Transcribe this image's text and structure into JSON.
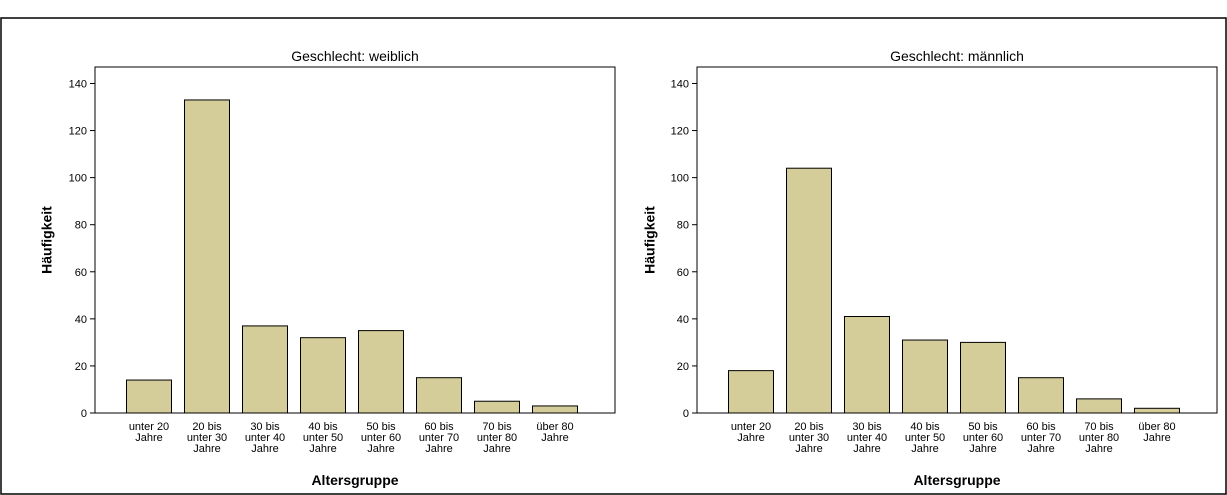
{
  "chart_data": [
    {
      "type": "bar",
      "title": "Geschlecht: weiblich",
      "xlabel": "Altersgruppe",
      "ylabel": "Häufigkeit",
      "ylim": [
        0,
        147
      ],
      "yticks": [
        0,
        20,
        40,
        60,
        80,
        100,
        120,
        140
      ],
      "grid": false,
      "bar_color": "#d4cd99",
      "categories": [
        [
          "unter 20",
          "Jahre"
        ],
        [
          "20 bis",
          "unter 30",
          "Jahre"
        ],
        [
          "30 bis",
          "unter 40",
          "Jahre"
        ],
        [
          "40 bis",
          "unter 50",
          "Jahre"
        ],
        [
          "50 bis",
          "unter 60",
          "Jahre"
        ],
        [
          "60 bis",
          "unter 70",
          "Jahre"
        ],
        [
          "70 bis",
          "unter 80",
          "Jahre"
        ],
        [
          "über 80",
          "Jahre"
        ]
      ],
      "values": [
        14,
        133,
        37,
        32,
        35,
        15,
        5,
        3
      ]
    },
    {
      "type": "bar",
      "title": "Geschlecht: männlich",
      "xlabel": "Altersgruppe",
      "ylabel": "Häufigkeit",
      "ylim": [
        0,
        147
      ],
      "yticks": [
        0,
        20,
        40,
        60,
        80,
        100,
        120,
        140
      ],
      "grid": false,
      "bar_color": "#d4cd99",
      "categories": [
        [
          "unter 20",
          "Jahre"
        ],
        [
          "20 bis",
          "unter 30",
          "Jahre"
        ],
        [
          "30 bis",
          "unter 40",
          "Jahre"
        ],
        [
          "40 bis",
          "unter 50",
          "Jahre"
        ],
        [
          "50 bis",
          "unter 60",
          "Jahre"
        ],
        [
          "60 bis",
          "unter 70",
          "Jahre"
        ],
        [
          "70 bis",
          "unter 80",
          "Jahre"
        ],
        [
          "über 80",
          "Jahre"
        ]
      ],
      "values": [
        18,
        104,
        41,
        31,
        30,
        15,
        6,
        2
      ]
    }
  ]
}
